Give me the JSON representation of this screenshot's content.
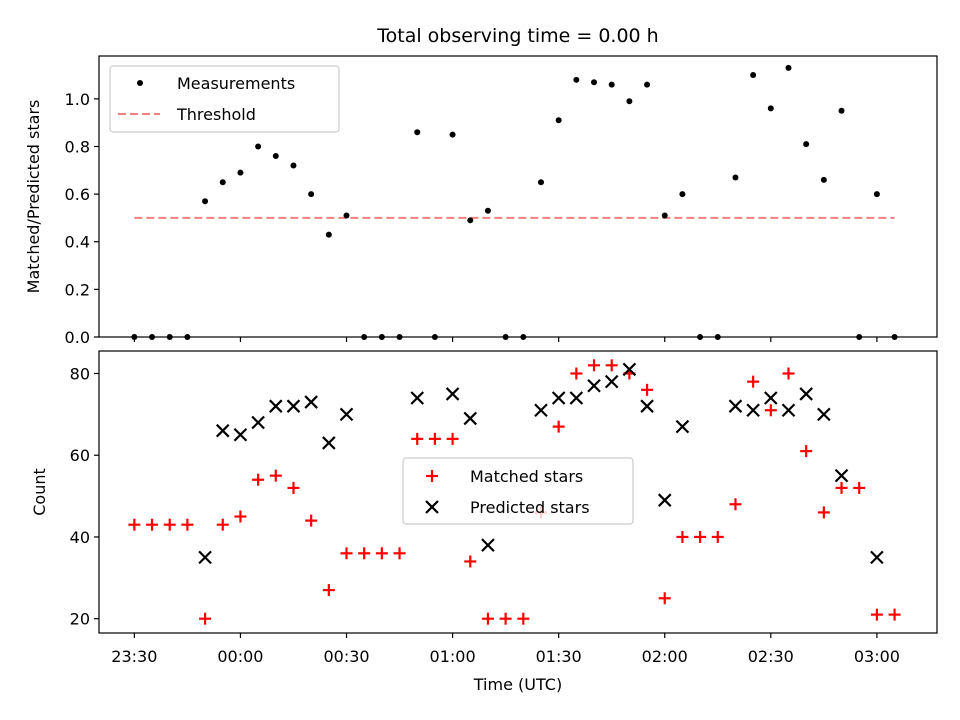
{
  "chart_data": {
    "title": "Total observing time = 0.00 h",
    "xlabel": "Time (UTC)",
    "x_tick_labels": [
      "23:30",
      "00:00",
      "00:30",
      "01:00",
      "01:30",
      "02:00",
      "02:30",
      "03:00"
    ],
    "x_ticks": [
      "23:30",
      "00:00",
      "00:30",
      "01:00",
      "01:30",
      "02:00",
      "02:30",
      "03:00"
    ],
    "xlim": [
      "23:20",
      "03:17"
    ],
    "x": [
      "23:30",
      "23:35",
      "23:40",
      "23:45",
      "23:50",
      "23:55",
      "00:00",
      "00:05",
      "00:10",
      "00:15",
      "00:20",
      "00:25",
      "00:30",
      "00:35",
      "00:40",
      "00:45",
      "00:50",
      "00:55",
      "01:00",
      "01:05",
      "01:10",
      "01:15",
      "01:20",
      "01:25",
      "01:30",
      "01:35",
      "01:40",
      "01:45",
      "01:50",
      "01:55",
      "02:00",
      "02:05",
      "02:10",
      "02:15",
      "02:20",
      "02:25",
      "02:30",
      "02:35",
      "02:40",
      "02:45",
      "02:50",
      "02:55",
      "03:00",
      "03:05"
    ],
    "panels": [
      {
        "type": "scatter",
        "ylabel": "Matched/Predicted stars",
        "ylim": [
          0,
          1.18
        ],
        "yticks": [
          0.0,
          0.2,
          0.4,
          0.6,
          0.8,
          1.0
        ],
        "ytick_labels": [
          "0.0",
          "0.2",
          "0.4",
          "0.6",
          "0.8",
          "1.0"
        ],
        "legend_position": "upper left",
        "series": [
          {
            "name": "Measurements",
            "color": "#000000",
            "marker": "dot",
            "values": [
              0,
              0,
              0,
              0,
              0.57,
              0.65,
              0.69,
              0.8,
              0.76,
              0.72,
              0.6,
              0.43,
              0.51,
              0,
              0,
              0,
              0.86,
              0,
              0.85,
              0.49,
              0.53,
              0,
              0,
              0.65,
              0.91,
              1.08,
              1.07,
              1.06,
              0.99,
              1.06,
              0.51,
              0.6,
              0,
              0,
              0.67,
              1.1,
              0.96,
              1.13,
              0.81,
              0.66,
              0.95,
              0,
              0.6,
              0
            ]
          }
        ],
        "threshold": {
          "name": "Threshold",
          "value": 0.5,
          "x_from": "23:30",
          "x_to": "03:05",
          "color": "#f08080",
          "style": "dashed"
        }
      },
      {
        "type": "scatter",
        "ylabel": "Count",
        "ylim": [
          16.5,
          85.5
        ],
        "yticks": [
          20,
          40,
          60,
          80
        ],
        "ytick_labels": [
          "20",
          "40",
          "60",
          "80"
        ],
        "legend_position": "center",
        "series": [
          {
            "name": "Matched stars",
            "color": "#ff0000",
            "marker": "plus",
            "values": [
              43,
              43,
              43,
              43,
              20,
              43,
              45,
              54,
              55,
              52,
              44,
              27,
              36,
              36,
              36,
              36,
              64,
              64,
              64,
              34,
              20,
              20,
              20,
              46,
              67,
              80,
              82,
              82,
              80,
              76,
              25,
              40,
              40,
              40,
              48,
              78,
              71,
              80,
              61,
              46,
              52,
              52,
              21,
              21
            ]
          },
          {
            "name": "Predicted stars",
            "color": "#000000",
            "marker": "x",
            "values": [
              null,
              null,
              null,
              null,
              35,
              66,
              65,
              68,
              72,
              72,
              73,
              63,
              70,
              null,
              null,
              null,
              74,
              null,
              75,
              69,
              38,
              null,
              null,
              71,
              74,
              74,
              77,
              78,
              81,
              72,
              49,
              67,
              null,
              null,
              72,
              71,
              74,
              71,
              75,
              70,
              55,
              null,
              35,
              null
            ]
          }
        ]
      }
    ]
  }
}
